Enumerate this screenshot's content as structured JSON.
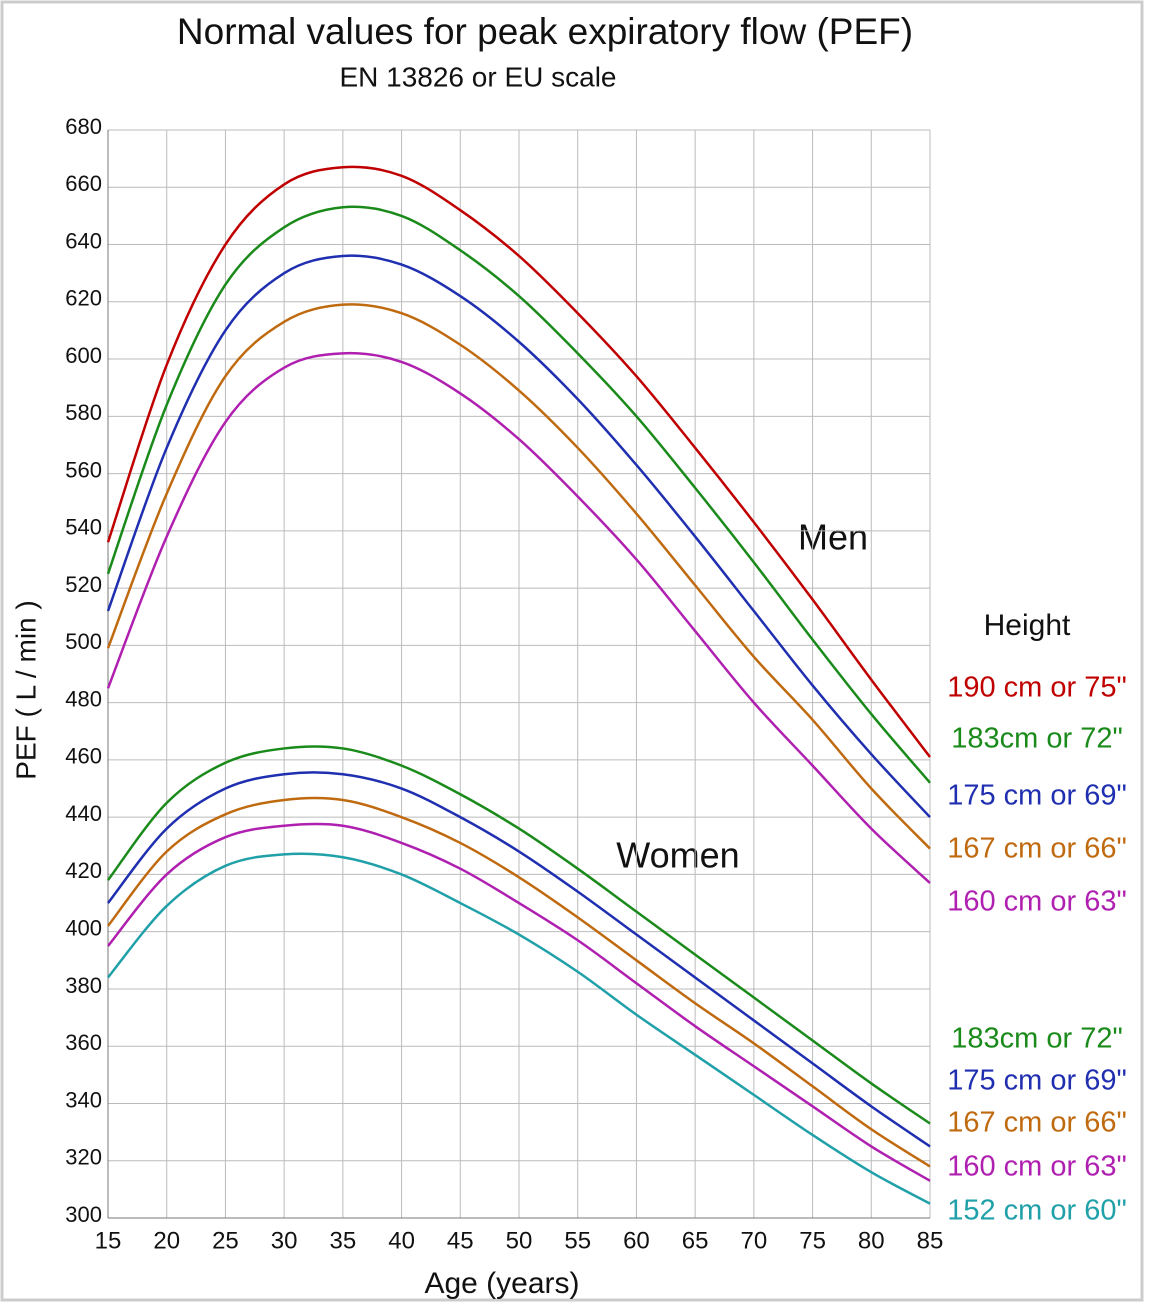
{
  "chart_data": {
    "type": "line",
    "title": "Normal values for peak expiratory flow (PEF)",
    "subtitle": "EN 13826 or EU scale",
    "x_label": "Age (years)",
    "y_label": "PEF ( L / min )",
    "annotations": [
      "Men",
      "Women",
      "Height"
    ],
    "x": [
      15,
      20,
      25,
      30,
      35,
      40,
      45,
      50,
      55,
      60,
      65,
      70,
      75,
      80,
      85
    ],
    "series": [
      {
        "name": "190 cm or 75\"",
        "color": "#c00000",
        "values": [
          536,
          598,
          640,
          661,
          667,
          664,
          652,
          636,
          616,
          594,
          569,
          543,
          516,
          488,
          461
        ]
      },
      {
        "name": "183cm or 72\"",
        "color": "#1a8a1a",
        "values": [
          525,
          584,
          626,
          646,
          653,
          650,
          638,
          622,
          602,
          580,
          555,
          529,
          502,
          476,
          452
        ]
      },
      {
        "name": "175 cm or 69\"",
        "color": "#1f2fb0",
        "values": [
          512,
          569,
          610,
          630,
          636,
          633,
          622,
          606,
          586,
          563,
          538,
          512,
          486,
          462,
          440
        ]
      },
      {
        "name": "167 cm or 66\"",
        "color": "#c06a10",
        "values": [
          499,
          553,
          594,
          613,
          619,
          616,
          605,
          589,
          569,
          546,
          521,
          496,
          474,
          450,
          429
        ]
      },
      {
        "name": "160 cm or 63\"",
        "color": "#b020b0",
        "values": [
          485,
          538,
          578,
          597,
          602,
          599,
          588,
          572,
          552,
          530,
          505,
          480,
          458,
          436,
          417
        ]
      },
      {
        "name": "183cm or 72\"",
        "color": "#1a8a1a",
        "values": [
          418,
          445,
          459,
          464,
          464,
          458,
          448,
          436,
          422,
          407,
          392,
          377,
          362,
          347,
          333
        ]
      },
      {
        "name": "175 cm or 69\"",
        "color": "#1f2fb0",
        "values": [
          410,
          436,
          450,
          455,
          455,
          450,
          440,
          428,
          414,
          399,
          384,
          369,
          354,
          339,
          325
        ]
      },
      {
        "name": "167 cm or 66\"",
        "color": "#c06a10",
        "values": [
          402,
          428,
          441,
          446,
          446,
          440,
          431,
          419,
          405,
          390,
          375,
          361,
          346,
          331,
          318
        ]
      },
      {
        "name": "160 cm or 63\"",
        "color": "#b020b0",
        "values": [
          395,
          420,
          433,
          437,
          437,
          431,
          422,
          410,
          397,
          382,
          367,
          353,
          339,
          325,
          313
        ]
      },
      {
        "name": "152 cm or 60\"",
        "color": "#20a0a8",
        "values": [
          384,
          409,
          423,
          427,
          426,
          420,
          410,
          399,
          386,
          371,
          357,
          343,
          329,
          316,
          305
        ]
      }
    ],
    "xlim": [
      15,
      85
    ],
    "ylim": [
      300,
      680
    ],
    "xticks": [
      15,
      20,
      25,
      30,
      35,
      40,
      45,
      50,
      55,
      60,
      65,
      70,
      75,
      80,
      85
    ],
    "yticks": [
      300,
      320,
      340,
      360,
      380,
      400,
      420,
      440,
      460,
      480,
      500,
      520,
      540,
      560,
      580,
      600,
      620,
      640,
      660,
      680
    ],
    "grid": true
  }
}
